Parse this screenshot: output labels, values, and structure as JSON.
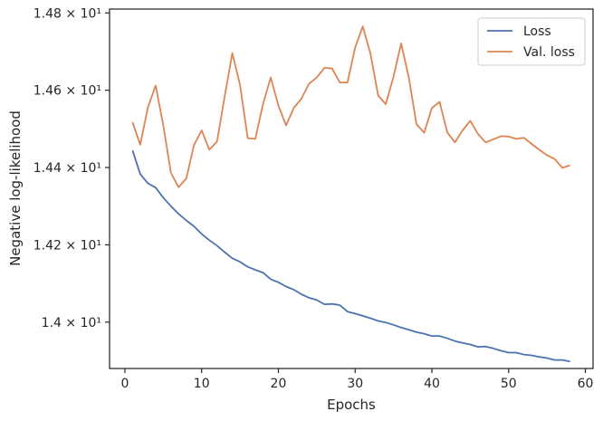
{
  "chart_data": {
    "type": "line",
    "xlabel": "Epochs",
    "ylabel": "Negative log-likelihood",
    "xlim": [
      -2.0,
      61.0
    ],
    "ylim": [
      13.88,
      14.81
    ],
    "xticks": [
      0,
      10,
      20,
      30,
      40,
      50,
      60
    ],
    "xtick_labels": [
      "0",
      "10",
      "20",
      "30",
      "40",
      "50",
      "60"
    ],
    "yticks": [
      14.0,
      14.2,
      14.4,
      14.6,
      14.8
    ],
    "ytick_labels": [
      "1.4 × 10¹",
      "1.42 × 10¹",
      "1.44 × 10¹",
      "1.46 × 10¹",
      "1.48 × 10¹"
    ],
    "grid": false,
    "legend_position": "upper-right",
    "series": [
      {
        "name": "Loss",
        "color": "#4c72b0",
        "x": [
          1,
          2,
          3,
          4,
          5,
          6,
          7,
          8,
          9,
          10,
          11,
          12,
          13,
          14,
          15,
          16,
          17,
          18,
          19,
          20,
          21,
          22,
          23,
          24,
          25,
          26,
          27,
          28,
          29,
          30,
          31,
          32,
          33,
          34,
          35,
          36,
          37,
          38,
          39,
          40,
          41,
          42,
          43,
          44,
          45,
          46,
          47,
          48,
          49,
          50,
          51,
          52,
          53,
          54,
          55,
          56,
          57,
          58
        ],
        "y": [
          14.444,
          14.383,
          14.359,
          14.348,
          14.322,
          14.3,
          14.28,
          14.263,
          14.248,
          14.228,
          14.212,
          14.198,
          14.181,
          14.165,
          14.156,
          14.143,
          14.135,
          14.128,
          14.111,
          14.103,
          14.092,
          14.084,
          14.072,
          14.063,
          14.057,
          14.046,
          14.047,
          14.044,
          14.027,
          14.022,
          14.016,
          14.01,
          14.003,
          13.999,
          13.993,
          13.986,
          13.98,
          13.974,
          13.97,
          13.964,
          13.964,
          13.958,
          13.951,
          13.946,
          13.942,
          13.936,
          13.937,
          13.932,
          13.926,
          13.921,
          13.921,
          13.916,
          13.914,
          13.91,
          13.907,
          13.902,
          13.902,
          13.898
        ]
      },
      {
        "name": "Val. loss",
        "color": "#dd8452",
        "x": [
          1,
          2,
          3,
          4,
          5,
          6,
          7,
          8,
          9,
          10,
          11,
          12,
          13,
          14,
          15,
          16,
          17,
          18,
          19,
          20,
          21,
          22,
          23,
          24,
          25,
          26,
          27,
          28,
          29,
          30,
          31,
          32,
          33,
          34,
          35,
          36,
          37,
          38,
          39,
          40,
          41,
          42,
          43,
          44,
          45,
          46,
          47,
          48,
          49,
          50,
          51,
          52,
          53,
          54,
          55,
          56,
          57,
          58
        ],
        "y": [
          14.517,
          14.459,
          14.556,
          14.612,
          14.51,
          14.386,
          14.349,
          14.372,
          14.458,
          14.496,
          14.446,
          14.467,
          14.583,
          14.696,
          14.614,
          14.476,
          14.474,
          14.564,
          14.633,
          14.56,
          14.509,
          14.554,
          14.578,
          14.617,
          14.633,
          14.658,
          14.656,
          14.62,
          14.62,
          14.71,
          14.765,
          14.694,
          14.586,
          14.564,
          14.635,
          14.721,
          14.632,
          14.512,
          14.49,
          14.554,
          14.57,
          14.491,
          14.465,
          14.496,
          14.521,
          14.487,
          14.465,
          14.473,
          14.481,
          14.48,
          14.474,
          14.477,
          14.461,
          14.446,
          14.432,
          14.422,
          14.399,
          14.406
        ]
      }
    ]
  }
}
